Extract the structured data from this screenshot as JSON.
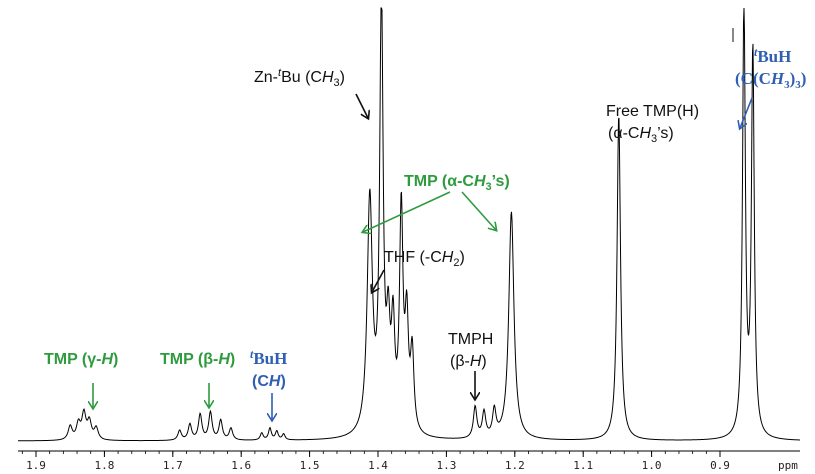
{
  "chart_data": {
    "type": "line",
    "title": "",
    "xlabel": "ppm",
    "ylabel": "",
    "x_reversed": true,
    "xlim": [
      1.93,
      0.84
    ],
    "ticks": [
      "1.9",
      "1.8",
      "1.7",
      "1.6",
      "1.5",
      "1.4",
      "1.3",
      "1.2",
      "1.1",
      "1.0",
      "0.9"
    ],
    "tick_values": [
      1.9,
      1.8,
      1.7,
      1.6,
      1.5,
      1.4,
      1.3,
      1.2,
      1.1,
      1.0,
      0.9
    ],
    "x_unit_label": "ppm",
    "grid": false,
    "peaks": [
      {
        "center": 1.85,
        "height": 0.035,
        "width": 0.0035
      },
      {
        "center": 1.838,
        "height": 0.04,
        "width": 0.0035
      },
      {
        "center": 1.83,
        "height": 0.065,
        "width": 0.0035
      },
      {
        "center": 1.822,
        "height": 0.045,
        "width": 0.0035
      },
      {
        "center": 1.812,
        "height": 0.03,
        "width": 0.0035
      },
      {
        "center": 1.69,
        "height": 0.025,
        "width": 0.003
      },
      {
        "center": 1.675,
        "height": 0.04,
        "width": 0.003
      },
      {
        "center": 1.66,
        "height": 0.065,
        "width": 0.003
      },
      {
        "center": 1.645,
        "height": 0.07,
        "width": 0.003
      },
      {
        "center": 1.63,
        "height": 0.05,
        "width": 0.003
      },
      {
        "center": 1.615,
        "height": 0.03,
        "width": 0.003
      },
      {
        "center": 1.57,
        "height": 0.018,
        "width": 0.0025
      },
      {
        "center": 1.558,
        "height": 0.03,
        "width": 0.0025
      },
      {
        "center": 1.548,
        "height": 0.022,
        "width": 0.0025
      },
      {
        "center": 1.538,
        "height": 0.015,
        "width": 0.0025
      },
      {
        "center": 1.412,
        "height": 0.6,
        "width": 0.0045
      },
      {
        "center": 1.395,
        "height": 1.1,
        "width": 0.003
      },
      {
        "center": 1.385,
        "height": 0.23,
        "width": 0.003
      },
      {
        "center": 1.378,
        "height": 0.25,
        "width": 0.003
      },
      {
        "center": 1.366,
        "height": 0.56,
        "width": 0.003
      },
      {
        "center": 1.358,
        "height": 0.27,
        "width": 0.003
      },
      {
        "center": 1.35,
        "height": 0.2,
        "width": 0.003
      },
      {
        "center": 1.258,
        "height": 0.08,
        "width": 0.003
      },
      {
        "center": 1.245,
        "height": 0.065,
        "width": 0.003
      },
      {
        "center": 1.23,
        "height": 0.068,
        "width": 0.003
      },
      {
        "center": 1.205,
        "height": 0.58,
        "width": 0.0045
      },
      {
        "center": 1.048,
        "height": 0.83,
        "width": 0.003
      },
      {
        "center": 0.865,
        "height": 1.1,
        "width": 0.0025
      },
      {
        "center": 0.852,
        "height": 0.98,
        "width": 0.0025
      }
    ],
    "annotations": [
      {
        "key": "tmp_gamma",
        "text": "TMP (γ-H)",
        "group": "TMP",
        "x": 1.83
      },
      {
        "key": "tmp_beta",
        "text": "TMP (β-H)",
        "group": "TMP",
        "x": 1.65
      },
      {
        "key": "tbuh_ch",
        "text_top": "tBuH",
        "text_bottom": "(CH)",
        "group": "tBuH",
        "x": 1.555
      },
      {
        "key": "zn_tbu",
        "text": "Zn-tBu (CH3)",
        "group": "other",
        "x": 1.395
      },
      {
        "key": "tmp_alpha",
        "text": "TMP (α-CH3's)",
        "group": "TMP",
        "x": [
          1.412,
          1.205
        ]
      },
      {
        "key": "thf",
        "text": "THF (-CH2)",
        "group": "other",
        "x": 1.366
      },
      {
        "key": "tmph",
        "text_top": "TMPH",
        "text_bottom": "(β-H)",
        "group": "other",
        "x": 1.243
      },
      {
        "key": "free_tmp",
        "text_top": "Free TMP(H)",
        "text_bottom": "(α-CH3's)",
        "group": "other",
        "x": 1.048
      },
      {
        "key": "tbuh_c",
        "text_top": "tBuH",
        "text_bottom": "(C(CH3)3)",
        "group": "tBuH",
        "x": 0.852
      }
    ],
    "colors": {
      "TMP": "#2e9b3f",
      "tBuH": "#2f5fb3",
      "other": "#111111",
      "spectrum": "#000000"
    }
  },
  "labels": {
    "tmp_gamma": {
      "a": "TMP (γ-",
      "i": "H",
      "b": ")"
    },
    "tmp_beta": {
      "a": "TMP (β-",
      "i": "H",
      "b": ")"
    },
    "tbuh_ch_top": {
      "sup": "t",
      "main": "BuH"
    },
    "tbuh_ch_bottom": {
      "a": "(C",
      "i": "H",
      "b": ")"
    },
    "zn_tbu": {
      "a": "Zn-",
      "sup": "t",
      "m": "Bu (C",
      "i": "H",
      "sub": "3",
      "b": ")"
    },
    "tmp_alpha": {
      "a": "TMP (α-C",
      "i": "H",
      "sub": "3",
      "b": "’s)"
    },
    "thf": {
      "a": "THF (-C",
      "i": "H",
      "sub": "2",
      "b": ")"
    },
    "tmph_top": "TMPH",
    "tmph_bottom": {
      "a": "(β-",
      "i": "H",
      "b": ")"
    },
    "free_tmp_top": "Free TMP(H)",
    "free_tmp_bottom": {
      "a": "(α-C",
      "i": "H",
      "sub": "3",
      "b": "’s)"
    },
    "tbuh_c_top": {
      "sup": "t",
      "main": "BuH"
    },
    "tbuh_c_bottom": {
      "a": "(C(C",
      "i": "H",
      "sub": "3",
      "b": ")",
      "sub2": "3",
      "c": ")"
    }
  }
}
